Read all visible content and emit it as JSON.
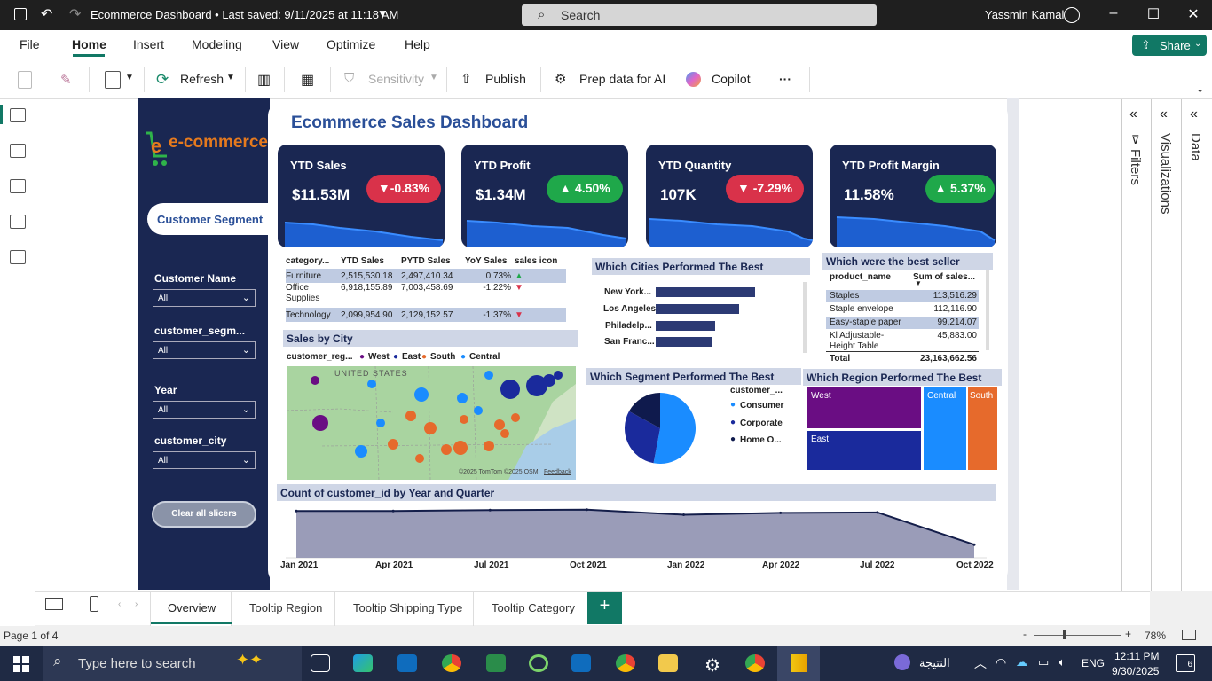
{
  "window": {
    "title": "Ecommerce Dashboard • Last saved: 9/11/2025 at 11:18 AM",
    "search_placeholder": "Search",
    "user": "Yassmin Kamal"
  },
  "menu": {
    "items": [
      "File",
      "Home",
      "Insert",
      "Modeling",
      "View",
      "Optimize",
      "Help"
    ],
    "share": "Share"
  },
  "ribbon": {
    "refresh": "Refresh",
    "sensitivity": "Sensitivity",
    "publish": "Publish",
    "prep": "Prep data for AI",
    "copilot": "Copilot",
    "more": "···"
  },
  "right_panes": {
    "filters": "Filters",
    "visualizations": "Visualizations",
    "data": "Data"
  },
  "dashboard": {
    "title": "Ecommerce Sales Dashboard",
    "logo": "e-commerce",
    "segment_button": "Customer Segment",
    "slicers": [
      {
        "label": "Customer Name",
        "value": "All"
      },
      {
        "label": "customer_segm...",
        "value": "All"
      },
      {
        "label": "Year",
        "value": "All"
      },
      {
        "label": "customer_city",
        "value": "All"
      }
    ],
    "clear_button": "Clear all slicers",
    "kpis": [
      {
        "label": "YTD Sales",
        "value": "$11.53M",
        "change": "-0.83%",
        "dir": "down",
        "color": "#d9324a"
      },
      {
        "label": "YTD Profit",
        "value": "$1.34M",
        "change": "4.50%",
        "dir": "up",
        "color": "#1fa84a"
      },
      {
        "label": "YTD Quantity",
        "value": "107K",
        "change": "-7.29%",
        "dir": "down",
        "color": "#d9324a"
      },
      {
        "label": "YTD Profit Margin",
        "value": "11.58%",
        "change": "5.37%",
        "dir": "up",
        "color": "#1fa84a"
      }
    ],
    "category_table": {
      "headers": [
        "category...",
        "YTD Sales",
        "PYTD Sales",
        "YoY Sales",
        "sales icon"
      ],
      "rows": [
        {
          "cat": "Furniture",
          "ytd": "2,515,530.18",
          "pytd": "2,497,410.34",
          "yoy": "0.73%",
          "icon": "up"
        },
        {
          "cat": "Office Supplies",
          "ytd": "6,918,155.89",
          "pytd": "7,003,458.69",
          "yoy": "-1.22%",
          "icon": "down"
        },
        {
          "cat": "Technology",
          "ytd": "2,099,954.90",
          "pytd": "2,129,152.57",
          "yoy": "-1.37%",
          "icon": "down"
        }
      ]
    },
    "cities": {
      "title": "Which Cities Performed The Best",
      "labels": [
        "New York...",
        "Los Angeles",
        "Philadelp...",
        "San Franc..."
      ],
      "values": [
        1.0,
        0.84,
        0.6,
        0.57
      ]
    },
    "best_seller": {
      "title": "Which were the best seller",
      "headers": [
        "product_name",
        "Sum of sales..."
      ],
      "rows": [
        {
          "name": "Staples",
          "value": "113,516.29"
        },
        {
          "name": "Staple envelope",
          "value": "112,116.90"
        },
        {
          "name": "Easy-staple paper",
          "value": "99,214.07"
        },
        {
          "name": "Kl Adjustable-Height Table",
          "value": "45,883.00"
        }
      ],
      "total_label": "Total",
      "total": "23,163,662.56"
    },
    "map": {
      "title": "Sales by City",
      "legend_title": "customer_reg...",
      "legend": [
        {
          "name": "West",
          "color": "#6a0d83"
        },
        {
          "name": "East",
          "color": "#1a2a9c"
        },
        {
          "name": "South",
          "color": "#e66a2c"
        },
        {
          "name": "Central",
          "color": "#1a8cff"
        }
      ],
      "country": "UNITED STATES",
      "attribution": "©2025 TomTom ©2025 OSM",
      "feedback": "Feedback"
    },
    "segment": {
      "title": "Which Segment Performed The Best",
      "legend_title": "customer_...",
      "items": [
        {
          "name": "Consumer",
          "share": 0.53,
          "color": "#1a8cff"
        },
        {
          "name": "Corporate",
          "share": 0.3,
          "color": "#1a2a9c"
        },
        {
          "name": "Home O...",
          "share": 0.17,
          "color": "#0f1a4d"
        }
      ]
    },
    "region": {
      "title": "Which Region Performed The Best",
      "items": [
        {
          "name": "West",
          "color": "#6a0d83"
        },
        {
          "name": "East",
          "color": "#1a2a9c"
        },
        {
          "name": "Central",
          "color": "#1a8cff"
        },
        {
          "name": "South",
          "color": "#e66a2c"
        }
      ]
    },
    "count_chart": {
      "title": "Count of customer_id by Year and Quarter",
      "ticks": [
        "Jan 2021",
        "Apr 2021",
        "Jul 2021",
        "Oct 2021",
        "Jan 2022",
        "Apr 2022",
        "Jul 2022",
        "Oct 2022"
      ]
    }
  },
  "chart_data": {
    "type": "area",
    "title": "Count of customer_id by Year and Quarter",
    "x": [
      "Jan 2021",
      "Apr 2021",
      "Jul 2021",
      "Oct 2021",
      "Jan 2022",
      "Apr 2022",
      "Jul 2022",
      "Oct 2022"
    ],
    "series": [
      {
        "values": [
          100,
          100,
          102,
          103,
          92,
          96,
          97,
          28
        ]
      }
    ],
    "ylim": [
      0,
      110
    ]
  },
  "tabs": [
    "Overview",
    "Tooltip Region",
    "Tooltip Shipping Type",
    "Tooltip Category"
  ],
  "status": {
    "page": "Page 1 of 4",
    "zoom": "78%"
  },
  "taskbar": {
    "search": "Type here to search",
    "result": "النتيجة",
    "lang": "ENG",
    "time": "12:11 PM",
    "date": "9/30/2025",
    "notifications": "6"
  }
}
